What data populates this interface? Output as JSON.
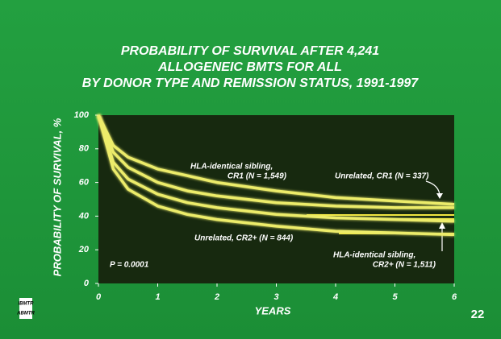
{
  "chart_data": {
    "type": "line",
    "title": [
      "PROBABILITY OF SURVIVAL AFTER 4,241",
      "ALLOGENEIC BMTS FOR ALL",
      "BY DONOR TYPE AND REMISSION STATUS, 1991-1997"
    ],
    "x_label": "YEARS",
    "y_label": "PROBABILITY OF SURVIVAL, %",
    "x": [
      0,
      0.25,
      0.5,
      1,
      1.5,
      2,
      3,
      4,
      5,
      6
    ],
    "series": [
      {
        "name": "HLA-identical sibling, CR1 (N = 1,549)",
        "color": "#ecec6a",
        "values": [
          100,
          82,
          75,
          68,
          64,
          60,
          55,
          51,
          49,
          47
        ]
      },
      {
        "name": "Unrelated, CR1 (N = 337)",
        "color": "#ecec6a",
        "values": [
          100,
          78,
          69,
          60,
          55,
          52,
          48,
          46,
          45,
          45
        ]
      },
      {
        "name": "HLA-identical sibling, CR2+ (N = 1,511)",
        "color": "#ecec6a",
        "values": [
          100,
          72,
          62,
          53,
          48,
          45,
          41,
          39,
          38,
          37
        ]
      },
      {
        "name": "Unrelated, CR2+ (N = 844)",
        "color": "#ecec6a",
        "values": [
          100,
          68,
          56,
          46,
          41,
          38,
          34,
          31,
          30,
          29
        ]
      }
    ],
    "annotations": [
      "HLA-identical sibling,",
      "CR1 (N = 1,549)",
      "Unrelated, CR1 (N = 337)",
      "Unrelated, CR2+ (N = 844)",
      "HLA-identical sibling,",
      "CR2+ (N = 1,511)",
      "P = 0.0001"
    ],
    "xlim": [
      0,
      6
    ],
    "ylim": [
      0,
      100
    ],
    "xticks": [
      0,
      1,
      2,
      3,
      4,
      5,
      6
    ],
    "yticks": [
      0,
      20,
      40,
      60,
      80,
      100
    ],
    "page_number": "22",
    "logo": [
      "IBMTR",
      "ABMTR"
    ]
  }
}
